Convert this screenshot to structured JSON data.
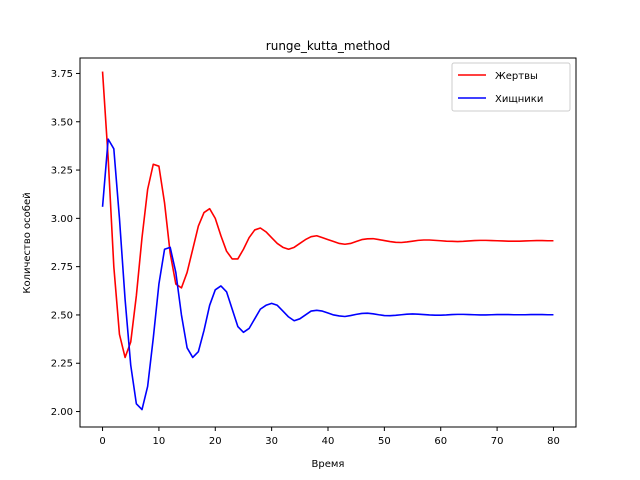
{
  "chart_data": {
    "type": "line",
    "title": "runge_kutta_method",
    "xlabel": "Время",
    "ylabel": "Количество особей",
    "xlim": [
      -4,
      84
    ],
    "ylim": [
      1.92,
      3.83
    ],
    "xticks": [
      0,
      10,
      20,
      30,
      40,
      50,
      60,
      70,
      80
    ],
    "yticks": [
      2.0,
      2.25,
      2.5,
      2.75,
      3.0,
      3.25,
      3.5,
      3.75
    ],
    "xtick_labels": [
      "0",
      "10",
      "20",
      "30",
      "40",
      "50",
      "60",
      "70",
      "80"
    ],
    "ytick_labels": [
      "2.00",
      "2.25",
      "2.50",
      "2.75",
      "3.00",
      "3.25",
      "3.50",
      "3.75"
    ],
    "grid": false,
    "legend_position": "top-right",
    "series": [
      {
        "name": "Жертвы",
        "color": "#ff0000",
        "x": [
          0,
          1,
          2,
          3,
          4,
          5,
          6,
          7,
          8,
          9,
          10,
          11,
          12,
          13,
          14,
          15,
          16,
          17,
          18,
          19,
          20,
          21,
          22,
          23,
          24,
          25,
          26,
          27,
          28,
          29,
          30,
          31,
          32,
          33,
          34,
          35,
          36,
          37,
          38,
          39,
          40,
          41,
          42,
          43,
          44,
          45,
          46,
          47,
          48,
          49,
          50,
          51,
          52,
          53,
          54,
          55,
          56,
          57,
          58,
          59,
          60,
          61,
          62,
          63,
          64,
          65,
          66,
          67,
          68,
          69,
          70,
          71,
          72,
          73,
          74,
          75,
          76,
          77,
          78,
          79,
          80
        ],
        "values": [
          3.76,
          3.31,
          2.75,
          2.4,
          2.28,
          2.36,
          2.6,
          2.9,
          3.15,
          3.28,
          3.27,
          3.08,
          2.82,
          2.66,
          2.64,
          2.72,
          2.84,
          2.96,
          3.03,
          3.05,
          3.0,
          2.91,
          2.83,
          2.79,
          2.79,
          2.84,
          2.9,
          2.94,
          2.95,
          2.93,
          2.9,
          2.87,
          2.85,
          2.84,
          2.85,
          2.87,
          2.89,
          2.905,
          2.91,
          2.9,
          2.89,
          2.88,
          2.87,
          2.866,
          2.87,
          2.88,
          2.89,
          2.894,
          2.895,
          2.89,
          2.885,
          2.88,
          2.876,
          2.875,
          2.878,
          2.882,
          2.886,
          2.888,
          2.888,
          2.886,
          2.884,
          2.882,
          2.881,
          2.88,
          2.881,
          2.883,
          2.885,
          2.886,
          2.886,
          2.885,
          2.884,
          2.883,
          2.882,
          2.882,
          2.882,
          2.883,
          2.884,
          2.885,
          2.885,
          2.884,
          2.884
        ]
      },
      {
        "name": "Хищники",
        "color": "#0000ff",
        "x": [
          0,
          1,
          2,
          3,
          4,
          5,
          6,
          7,
          8,
          9,
          10,
          11,
          12,
          13,
          14,
          15,
          16,
          17,
          18,
          19,
          20,
          21,
          22,
          23,
          24,
          25,
          26,
          27,
          28,
          29,
          30,
          31,
          32,
          33,
          34,
          35,
          36,
          37,
          38,
          39,
          40,
          41,
          42,
          43,
          44,
          45,
          46,
          47,
          48,
          49,
          50,
          51,
          52,
          53,
          54,
          55,
          56,
          57,
          58,
          59,
          60,
          61,
          62,
          63,
          64,
          65,
          66,
          67,
          68,
          69,
          70,
          71,
          72,
          73,
          74,
          75,
          76,
          77,
          78,
          79,
          80
        ],
        "values": [
          3.06,
          3.41,
          3.36,
          3.0,
          2.58,
          2.24,
          2.04,
          2.01,
          2.13,
          2.38,
          2.66,
          2.84,
          2.85,
          2.72,
          2.5,
          2.33,
          2.28,
          2.31,
          2.42,
          2.55,
          2.63,
          2.65,
          2.62,
          2.53,
          2.44,
          2.41,
          2.43,
          2.48,
          2.53,
          2.55,
          2.56,
          2.55,
          2.52,
          2.49,
          2.47,
          2.48,
          2.5,
          2.52,
          2.524,
          2.52,
          2.51,
          2.5,
          2.495,
          2.492,
          2.497,
          2.503,
          2.508,
          2.509,
          2.506,
          2.501,
          2.497,
          2.496,
          2.498,
          2.501,
          2.504,
          2.505,
          2.504,
          2.502,
          2.5,
          2.499,
          2.499,
          2.5,
          2.502,
          2.503,
          2.503,
          2.502,
          2.501,
          2.5,
          2.5,
          2.501,
          2.502,
          2.502,
          2.502,
          2.501,
          2.501,
          2.501,
          2.502,
          2.502,
          2.502,
          2.501,
          2.501
        ]
      }
    ]
  }
}
